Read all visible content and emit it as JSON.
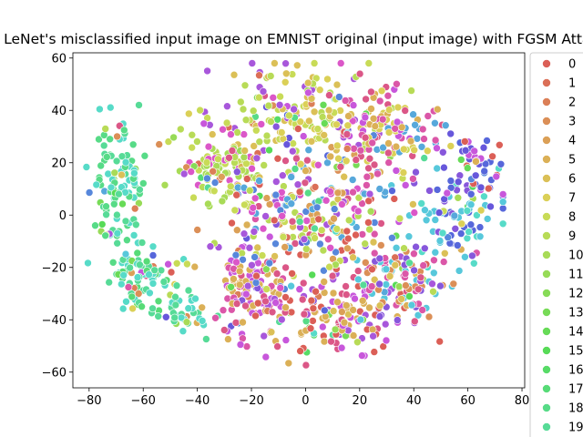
{
  "chart_data": {
    "type": "scatter",
    "title": "LeNet's misclassified input image on EMNIST original (input image) with FGSM Attack",
    "xlabel": "",
    "ylabel": "",
    "xlim": [
      -86,
      81
    ],
    "ylim": [
      -66,
      62
    ],
    "xticks": [
      -80,
      -60,
      -40,
      -20,
      0,
      20,
      40,
      60,
      80
    ],
    "yticks": [
      -60,
      -40,
      -20,
      0,
      20,
      40,
      60
    ],
    "grid": false,
    "legend_position": "right-outside",
    "legend": [
      {
        "label": "0",
        "color": "#db5f57"
      },
      {
        "label": "1",
        "color": "#db6f57"
      },
      {
        "label": "2",
        "color": "#db7f57"
      },
      {
        "label": "3",
        "color": "#db8f57"
      },
      {
        "label": "4",
        "color": "#dba057"
      },
      {
        "label": "5",
        "color": "#dbb057"
      },
      {
        "label": "6",
        "color": "#dbc057"
      },
      {
        "label": "7",
        "color": "#dbd057"
      },
      {
        "label": "8",
        "color": "#c8db57"
      },
      {
        "label": "9",
        "color": "#b8db57"
      },
      {
        "label": "10",
        "color": "#a8db57"
      },
      {
        "label": "11",
        "color": "#97db57"
      },
      {
        "label": "12",
        "color": "#87db57"
      },
      {
        "label": "13",
        "color": "#77db57"
      },
      {
        "label": "14",
        "color": "#67db57"
      },
      {
        "label": "15",
        "color": "#57db57"
      },
      {
        "label": "16",
        "color": "#57db67"
      },
      {
        "label": "17",
        "color": "#57db77"
      },
      {
        "label": "18",
        "color": "#57db87"
      },
      {
        "label": "19",
        "color": "#57db97"
      }
    ],
    "extra_colors": [
      "#57dbc8",
      "#57c8db",
      "#57a8db",
      "#5787db",
      "#5767db",
      "#6757db",
      "#8757db",
      "#a857db",
      "#c857db",
      "#db57c8",
      "#db57a8",
      "#db5787"
    ],
    "clusters": [
      {
        "cx": -70,
        "cy": 10,
        "rx": 9,
        "ry": 22,
        "n": 110,
        "colors": [
          "#57db97",
          "#57dbc8",
          "#57db87"
        ]
      },
      {
        "cx": -60,
        "cy": -25,
        "rx": 9,
        "ry": 11,
        "n": 80,
        "colors": [
          "#57db97",
          "#57dbc8",
          "#57db77"
        ]
      },
      {
        "cx": -45,
        "cy": -38,
        "rx": 8,
        "ry": 6,
        "n": 35,
        "colors": [
          "#57dbc8",
          "#57db97"
        ]
      },
      {
        "cx": 55,
        "cy": 2,
        "rx": 16,
        "ry": 16,
        "n": 90,
        "colors": [
          "#57c8db",
          "#57dbc8",
          "#5767db",
          "#8757db"
        ]
      },
      {
        "cx": 62,
        "cy": 20,
        "rx": 10,
        "ry": 10,
        "n": 45,
        "colors": [
          "#5767db",
          "#6757db",
          "#c857db",
          "#db5f57"
        ]
      },
      {
        "cx": 0,
        "cy": 38,
        "rx": 25,
        "ry": 15,
        "n": 160,
        "colors": [
          "#dbc057",
          "#c8db57",
          "#b8db57",
          "#dbd057",
          "#a857db"
        ]
      },
      {
        "cx": -30,
        "cy": 20,
        "rx": 15,
        "ry": 12,
        "n": 110,
        "colors": [
          "#b8db57",
          "#c8db57",
          "#a8db57",
          "#db57c8"
        ]
      },
      {
        "cx": -20,
        "cy": -30,
        "rx": 12,
        "ry": 14,
        "n": 110,
        "colors": [
          "#db5787",
          "#db57a8",
          "#dbb057",
          "#c857db"
        ]
      },
      {
        "cx": 10,
        "cy": -38,
        "rx": 25,
        "ry": 14,
        "n": 170,
        "colors": [
          "#db5787",
          "#c857db",
          "#db5f57",
          "#a857db",
          "#dbb057"
        ]
      },
      {
        "cx": 35,
        "cy": -25,
        "rx": 15,
        "ry": 15,
        "n": 120,
        "colors": [
          "#db57a8",
          "#db8f57",
          "#8757db",
          "#57c8db",
          "#dbc057"
        ]
      },
      {
        "cx": 0,
        "cy": 0,
        "rx": 30,
        "ry": 22,
        "n": 280,
        "colors": [
          "#dbc057",
          "#db57c8",
          "#c8db57",
          "#db5787",
          "#57a8db",
          "#5787db",
          "#a857db",
          "#dba057",
          "#b8db57",
          "#db5f57"
        ]
      },
      {
        "cx": 30,
        "cy": 30,
        "rx": 18,
        "ry": 16,
        "n": 140,
        "colors": [
          "#db57a8",
          "#dbb057",
          "#c857db",
          "#db5787",
          "#dbd057",
          "#57a8db"
        ]
      }
    ]
  }
}
